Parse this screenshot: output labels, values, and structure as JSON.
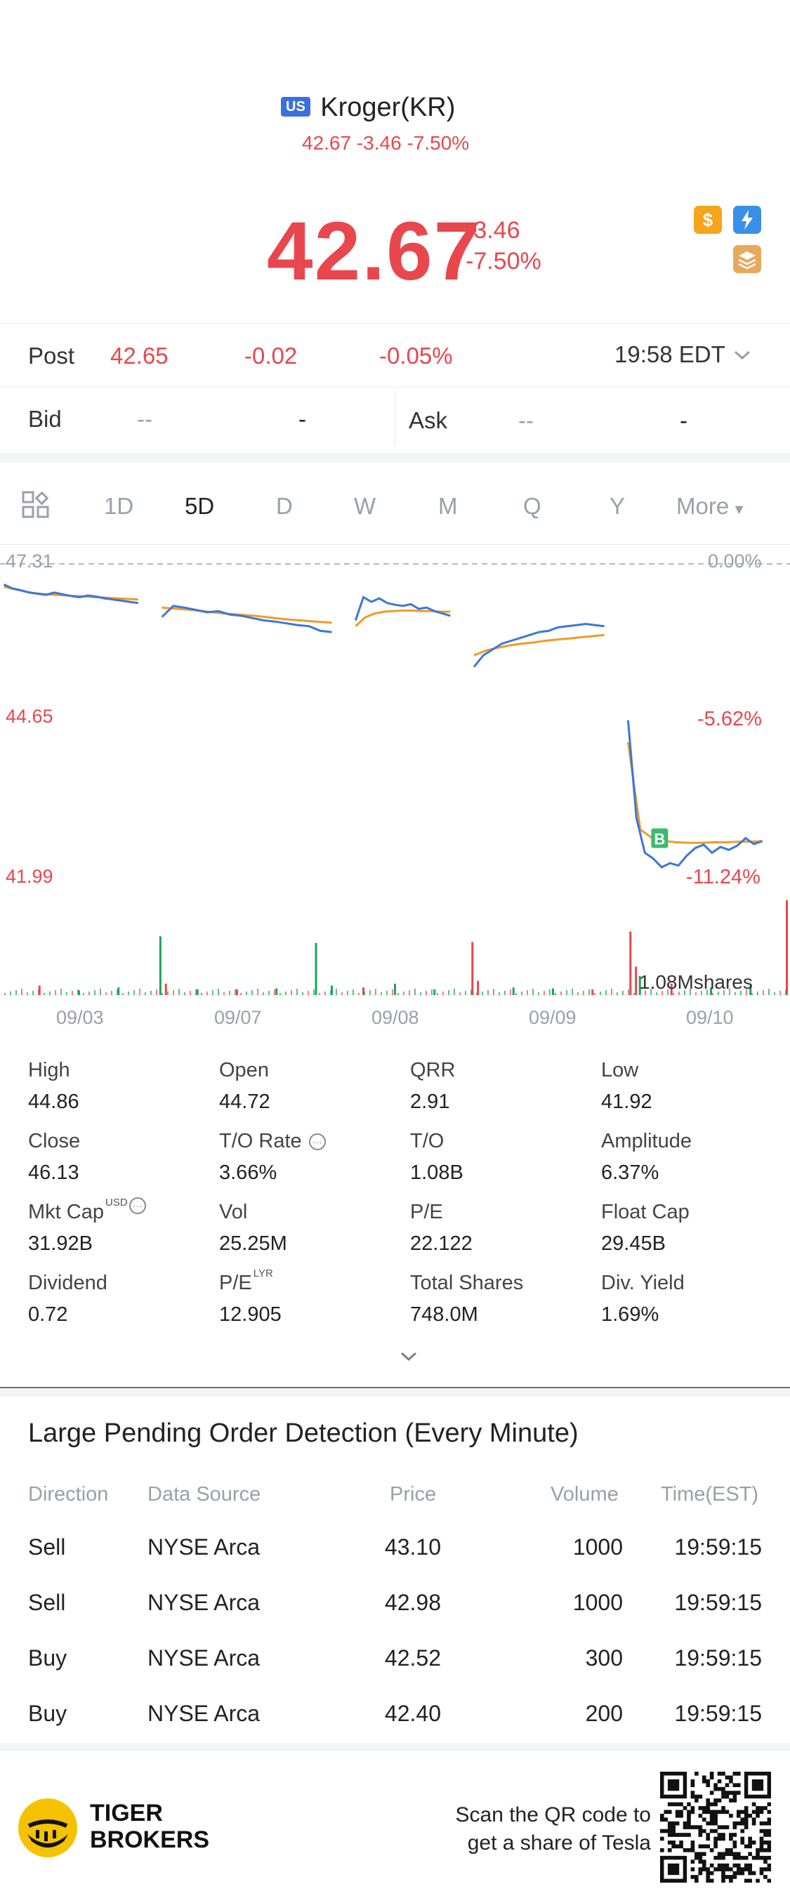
{
  "header": {
    "market_badge": "US",
    "title": "Kroger(KR)",
    "sub_quote": "42.67 -3.46 -7.50%",
    "price": "42.67",
    "change": "-3.46",
    "change_pct": "-7.50%",
    "icons": [
      "dollar-icon",
      "flash-icon",
      "stack-icon"
    ]
  },
  "post": {
    "label": "Post",
    "price": "42.65",
    "change": "-0.02",
    "change_pct": "-0.05%",
    "time": "19:58 EDT"
  },
  "bid_ask": {
    "bid_label": "Bid",
    "bid_price": "--",
    "bid_size": "-",
    "ask_label": "Ask",
    "ask_price": "--",
    "ask_size": "-"
  },
  "tabs": {
    "items": [
      "1D",
      "5D",
      "D",
      "W",
      "M",
      "Q",
      "Y",
      "More"
    ],
    "active": "5D"
  },
  "chart_data": {
    "type": "line",
    "title": "",
    "x_labels": [
      "09/03",
      "09/07",
      "09/08",
      "09/09",
      "09/10"
    ],
    "y_top_label": "47.31",
    "y_mid_label": "44.65",
    "y_bottom_label": "41.99",
    "pct_top_label": "0.00%",
    "pct_mid_label": "-5.62%",
    "pct_bottom_label": "-11.24%",
    "ylim": [
      41.99,
      47.31
    ],
    "volume_label": "1.08Mshares",
    "marker_label": "B",
    "colors": {
      "price": "#3b76dc",
      "avg": "#f29a26",
      "up": "#1aa55a",
      "down": "#e8474d"
    },
    "series": [
      {
        "name": "",
        "segments": [
          {
            "day": "09/03",
            "values": [
              46.92,
              46.85,
              46.82,
              46.78,
              46.76,
              46.74,
              46.78,
              46.75,
              46.72,
              46.7,
              46.73,
              46.71,
              46.68,
              46.66,
              46.64,
              46.62,
              46.6
            ]
          },
          {
            "day": "09/07",
            "values": [
              46.36,
              46.55,
              46.52,
              46.48,
              46.44,
              46.46,
              46.4,
              46.38,
              46.34,
              46.3,
              46.28,
              46.25,
              46.22,
              46.2,
              46.12,
              46.1
            ]
          },
          {
            "day": "09/08",
            "values": [
              46.3,
              46.7,
              46.62,
              46.68,
              46.6,
              46.57,
              46.55,
              46.58,
              46.5,
              46.52,
              46.46,
              46.42,
              46.38
            ]
          },
          {
            "day": "09/09",
            "values": [
              45.5,
              45.7,
              45.8,
              45.9,
              45.95,
              46.0,
              46.05,
              46.1,
              46.12,
              46.18,
              46.2,
              46.22,
              46.24,
              46.22,
              46.2
            ]
          },
          {
            "day": "09/10",
            "values": [
              44.58,
              42.9,
              42.3,
              42.2,
              42.05,
              42.12,
              42.08,
              42.25,
              42.38,
              42.44,
              42.3,
              42.4,
              42.35,
              42.42,
              42.55,
              42.45,
              42.5
            ]
          }
        ]
      },
      {
        "name": "",
        "segments": [
          {
            "day": "09/03",
            "values": [
              46.88,
              46.84,
              46.8,
              46.77,
              46.75,
              46.74,
              46.73,
              46.72,
              46.71,
              46.7,
              46.69,
              46.68,
              46.67,
              46.66
            ]
          },
          {
            "day": "09/07",
            "values": [
              46.52,
              46.5,
              46.48,
              46.45,
              46.42,
              46.4,
              46.38,
              46.35,
              46.32,
              46.3,
              46.28,
              46.26
            ]
          },
          {
            "day": "09/08",
            "values": [
              46.2,
              46.35,
              46.42,
              46.45,
              46.46,
              46.47,
              46.47,
              46.46,
              46.46,
              46.45,
              46.45
            ]
          },
          {
            "day": "09/09",
            "values": [
              45.7,
              45.78,
              45.83,
              45.87,
              45.9,
              45.92,
              45.95,
              45.97,
              45.99,
              46.01,
              46.03,
              46.05
            ]
          },
          {
            "day": "09/10",
            "values": [
              44.2,
              42.7,
              42.55,
              42.5,
              42.48,
              42.47,
              42.47,
              42.48,
              42.48,
              42.49,
              42.49,
              42.5
            ]
          }
        ]
      }
    ],
    "volume": [
      {
        "x": 0.05,
        "v": 0.1,
        "c": "down"
      },
      {
        "x": 0.1,
        "v": 0.05,
        "c": "up"
      },
      {
        "x": 0.15,
        "v": 0.08,
        "c": "up"
      },
      {
        "x": 0.203,
        "v": 0.62,
        "c": "up"
      },
      {
        "x": 0.21,
        "v": 0.12,
        "c": "down"
      },
      {
        "x": 0.25,
        "v": 0.06,
        "c": "up"
      },
      {
        "x": 0.3,
        "v": 0.06,
        "c": "down"
      },
      {
        "x": 0.35,
        "v": 0.07,
        "c": "up"
      },
      {
        "x": 0.4,
        "v": 0.55,
        "c": "up"
      },
      {
        "x": 0.42,
        "v": 0.1,
        "c": "up"
      },
      {
        "x": 0.46,
        "v": 0.08,
        "c": "down"
      },
      {
        "x": 0.5,
        "v": 0.12,
        "c": "up"
      },
      {
        "x": 0.55,
        "v": 0.06,
        "c": "up"
      },
      {
        "x": 0.598,
        "v": 0.56,
        "c": "down"
      },
      {
        "x": 0.605,
        "v": 0.15,
        "c": "down"
      },
      {
        "x": 0.65,
        "v": 0.08,
        "c": "up"
      },
      {
        "x": 0.7,
        "v": 0.07,
        "c": "up"
      },
      {
        "x": 0.75,
        "v": 0.06,
        "c": "down"
      },
      {
        "x": 0.798,
        "v": 0.67,
        "c": "down"
      },
      {
        "x": 0.805,
        "v": 0.3,
        "c": "down"
      },
      {
        "x": 0.81,
        "v": 0.2,
        "c": "up"
      },
      {
        "x": 0.85,
        "v": 0.12,
        "c": "down"
      },
      {
        "x": 0.9,
        "v": 0.08,
        "c": "up"
      },
      {
        "x": 0.95,
        "v": 0.1,
        "c": "up"
      },
      {
        "x": 0.996,
        "v": 1.0,
        "c": "down"
      }
    ]
  },
  "stats": [
    {
      "label": "High",
      "value": "44.86"
    },
    {
      "label": "Open",
      "value": "44.72"
    },
    {
      "label": "QRR",
      "value": "2.91"
    },
    {
      "label": "Low",
      "value": "41.92"
    },
    {
      "label": "Close",
      "value": "46.13"
    },
    {
      "label": "T/O Rate",
      "value": "3.66%"
    },
    {
      "label": "T/O",
      "value": "1.08B"
    },
    {
      "label": "Amplitude",
      "value": "6.37%"
    },
    {
      "label": "Mkt Cap",
      "value": "31.92B",
      "sup": "USD"
    },
    {
      "label": "Vol",
      "value": "25.25M"
    },
    {
      "label": "P/E",
      "value": "22.122"
    },
    {
      "label": "Float Cap",
      "value": "29.45B"
    },
    {
      "label": "Dividend",
      "value": "0.72"
    },
    {
      "label": "P/E",
      "value": "12.905",
      "sup": "LYR"
    },
    {
      "label": "Total Shares",
      "value": "748.0M"
    },
    {
      "label": "Div. Yield",
      "value": "1.69%"
    }
  ],
  "orders": {
    "title": "Large Pending Order Detection (Every Minute)",
    "headers": [
      "Direction",
      "Data Source",
      "Price",
      "Volume",
      "Time(EST)"
    ],
    "rows": [
      [
        "Sell",
        "NYSE Arca",
        "43.10",
        "1000",
        "19:59:15"
      ],
      [
        "Sell",
        "NYSE Arca",
        "42.98",
        "1000",
        "19:59:15"
      ],
      [
        "Buy",
        "NYSE Arca",
        "42.52",
        "300",
        "19:59:15"
      ],
      [
        "Buy",
        "NYSE Arca",
        "42.40",
        "200",
        "19:59:15"
      ]
    ]
  },
  "footer": {
    "brand_line1": "TIGER",
    "brand_line2": "BROKERS",
    "promo_line1": "Scan the QR code to",
    "promo_line2": "get a share of Tesla"
  }
}
